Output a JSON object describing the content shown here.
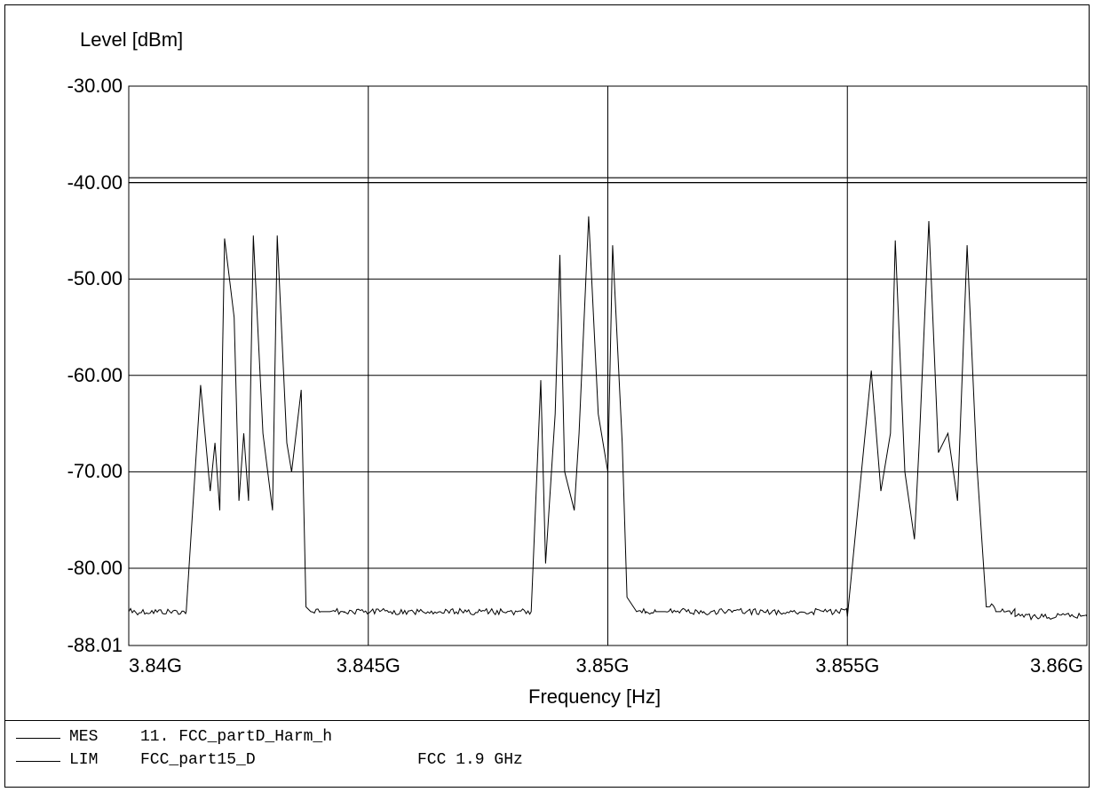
{
  "chart_data": {
    "type": "line",
    "ylabel": "Level [dBm]",
    "xlabel": "Frequency [Hz]",
    "ylim": [
      -88.01,
      -30.0
    ],
    "xlim": [
      3840000000.0,
      3860000000.0
    ],
    "y_ticks": [
      "-30.00",
      "-40.00",
      "-50.00",
      "-60.00",
      "-70.00",
      "-80.00",
      "-88.01"
    ],
    "y_tick_values": [
      -30,
      -40,
      -50,
      -60,
      -70,
      -80,
      -88.01
    ],
    "x_ticks": [
      "3.84G",
      "3.845G",
      "3.85G",
      "3.855G",
      "3.86G"
    ],
    "x_tick_values": [
      3840000000.0,
      3845000000.0,
      3850000000.0,
      3855000000.0,
      3860000000.0
    ],
    "grid": true,
    "limit_lines": [
      {
        "name": "LIM",
        "y": -39.5
      },
      {
        "name": "LIM",
        "y": -40.0
      }
    ],
    "series": [
      {
        "name": "MES",
        "x": [
          3840000000.0,
          3841200000.0,
          3841500000.0,
          3841700000.0,
          3841800000.0,
          3841900000.0,
          3842000000.0,
          3842200000.0,
          3842300000.0,
          3842400000.0,
          3842500000.0,
          3842600000.0,
          3842800000.0,
          3843000000.0,
          3843100000.0,
          3843300000.0,
          3843400000.0,
          3843600000.0,
          3843700000.0,
          3843800000.0,
          3844000000.0,
          3844100000.0,
          3844200000.0,
          3844500000.0,
          3848000000.0,
          3848400000.0,
          3848600000.0,
          3848700000.0,
          3848900000.0,
          3849000000.0,
          3849100000.0,
          3849300000.0,
          3849400000.0,
          3849600000.0,
          3849800000.0,
          3850000000.0,
          3850100000.0,
          3850300000.0,
          3850400000.0,
          3850600000.0,
          3850800000.0,
          3851000000.0,
          3851100000.0,
          3851200000.0,
          3852000000.0,
          3854500000.0,
          3855000000.0,
          3855500000.0,
          3855700000.0,
          3855900000.0,
          3856000000.0,
          3856200000.0,
          3856400000.0,
          3856500000.0,
          3856700000.0,
          3856900000.0,
          3857100000.0,
          3857300000.0,
          3857500000.0,
          3857700000.0,
          3857900000.0,
          3858100000.0,
          3858200000.0,
          3858500000.0,
          3860000000.0
        ],
        "y": [
          -84.5,
          -84.5,
          -61.0,
          -72.0,
          -67.0,
          -74.0,
          -45.8,
          -54.0,
          -73.0,
          -66.0,
          -73.0,
          -45.5,
          -66.0,
          -74.0,
          -45.5,
          -67.0,
          -70.0,
          -61.5,
          -84.0,
          -84.5,
          -84.5,
          -84.5,
          -84.5,
          -84.5,
          -84.5,
          -84.5,
          -60.5,
          -79.5,
          -64.0,
          -47.5,
          -70.0,
          -74.0,
          -66.0,
          -43.5,
          -64.0,
          -70.0,
          -46.5,
          -67.0,
          -83.0,
          -84.5,
          -84.5,
          -84.5,
          -84.5,
          -84.5,
          -84.5,
          -84.5,
          -85.0,
          -59.5,
          -72.0,
          -66.0,
          -46.0,
          -70.0,
          -77.0,
          -67.0,
          -44.0,
          -68.0,
          -66.0,
          -73.0,
          -46.5,
          -69.0,
          -84.0,
          -84.5,
          -84.5,
          -85.0,
          -85.0
        ]
      }
    ]
  },
  "legend": [
    {
      "tag": "MES",
      "text": "11. FCC_partD_Harm_h",
      "extra": ""
    },
    {
      "tag": "LIM",
      "text": "FCC_part15_D",
      "extra": "FCC 1.9 GHz"
    }
  ]
}
